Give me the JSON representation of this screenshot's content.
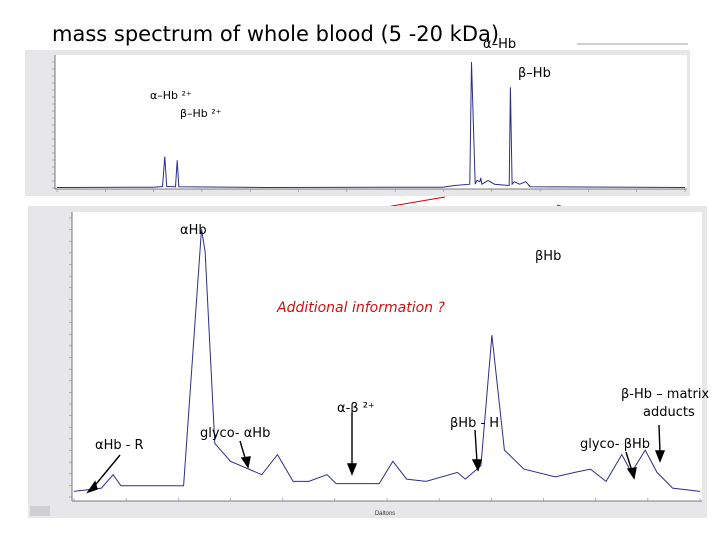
{
  "slide": {
    "title": "mass spectrum of whole blood (5 -20 kDa)"
  },
  "colors": {
    "trace": "#2b2f8a",
    "panel_bg": "#e7e7ea",
    "plot_bg": "#ffffff",
    "connector": "#d40000",
    "highlight_text": "#cc1111"
  },
  "top_panel": {
    "annotations": {
      "alpha_hb": "α–Hb",
      "beta_hb": "β–Hb",
      "alpha_hb_2plus": "α–Hb ²⁺",
      "beta_hb_2plus": "β–Hb ²⁺"
    }
  },
  "bottom_panel": {
    "annotations": {
      "alpha_hb": "αHb",
      "beta_hb": "βHb",
      "additional_info": "Additional information ?",
      "alpha_beta_2plus": "α-β ²⁺",
      "alpha_hb_r": "αHb - R",
      "glyco_alpha_hb": "glyco- αHb",
      "beta_hb_h": "βHb - H",
      "beta_hb_matrix_adducts_line1": "β-Hb – matrix",
      "beta_hb_matrix_adducts_line2": "adducts",
      "glyco_beta_hb": "glyco- βHb"
    },
    "x_axis_label": "Daltons"
  },
  "chart_data": [
    {
      "type": "line",
      "name": "top-overview-spectrum",
      "title": "mass spectrum of whole blood (5 -20 kDa)",
      "x_unit": "Da",
      "xlim": [
        5000,
        20000
      ],
      "ylim": [
        0,
        1
      ],
      "x": [
        5000,
        7300,
        7520,
        7575,
        7620,
        7830,
        7870,
        7910,
        10000,
        14200,
        14500,
        14860,
        14900,
        14990,
        15030,
        15100,
        15120,
        15150,
        15300,
        15450,
        15800,
        15830,
        15870,
        15920,
        16050,
        16200,
        16300,
        20000
      ],
      "series": [
        {
          "values": [
            0.004,
            0.006,
            0.012,
            0.25,
            0.012,
            0.01,
            0.22,
            0.01,
            0.004,
            0.006,
            0.02,
            0.03,
            1.0,
            0.03,
            0.06,
            0.05,
            0.08,
            0.03,
            0.06,
            0.03,
            0.02,
            0.8,
            0.03,
            0.05,
            0.03,
            0.05,
            0.01,
            0.004
          ]
        }
      ],
      "peaks": [
        {
          "label": "α–Hb ²⁺",
          "x": 7575,
          "y": 0.25
        },
        {
          "label": "β–Hb ²⁺",
          "x": 7870,
          "y": 0.22
        },
        {
          "label": "α–Hb",
          "x": 14900,
          "y": 1.0
        },
        {
          "label": "β–Hb",
          "x": 15830,
          "y": 0.8
        }
      ]
    },
    {
      "type": "line",
      "name": "bottom-zoomed-spectrum",
      "xlabel": "Daltons",
      "x_unit": "Da",
      "xlim": [
        14800,
        16400
      ],
      "ylim": [
        0,
        0.025
      ],
      "x": [
        14800,
        14870,
        14900,
        14920,
        14990,
        15080,
        15126,
        15135,
        15160,
        15200,
        15280,
        15320,
        15360,
        15400,
        15447,
        15470,
        15520,
        15580,
        15615,
        15650,
        15700,
        15780,
        15800,
        15840,
        15868,
        15900,
        15950,
        16030,
        16080,
        16120,
        16160,
        16200,
        16225,
        16260,
        16290,
        16330,
        16400
      ],
      "series": [
        {
          "values": [
            0.0005,
            0.0008,
            0.002,
            0.001,
            0.001,
            0.001,
            0.024,
            0.022,
            0.0048,
            0.0032,
            0.002,
            0.0038,
            0.0014,
            0.0014,
            0.002,
            0.0012,
            0.0012,
            0.0012,
            0.0032,
            0.0016,
            0.0014,
            0.0022,
            0.0016,
            0.0028,
            0.0145,
            0.0042,
            0.0025,
            0.0018,
            0.0022,
            0.0025,
            0.0014,
            0.0038,
            0.0022,
            0.0042,
            0.0022,
            0.0008,
            0.0005
          ]
        }
      ],
      "peaks": [
        {
          "label": "αHb - R",
          "x": 14900,
          "y": 0.002
        },
        {
          "label": "αHb",
          "x": 15126,
          "y": 0.024
        },
        {
          "label": "glyco- αHb",
          "x": 15320,
          "y": 0.0038
        },
        {
          "label": "α-β ²⁺",
          "x": 15447,
          "y": 0.002
        },
        {
          "label": "βHb - H",
          "x": 15615,
          "y": 0.0032
        },
        {
          "label": "βHb",
          "x": 15868,
          "y": 0.0145
        },
        {
          "label": "glyco- βHb",
          "x": 16200,
          "y": 0.0038
        },
        {
          "label": "β-Hb – matrix adducts",
          "x": 16260,
          "y": 0.0042
        }
      ]
    }
  ]
}
